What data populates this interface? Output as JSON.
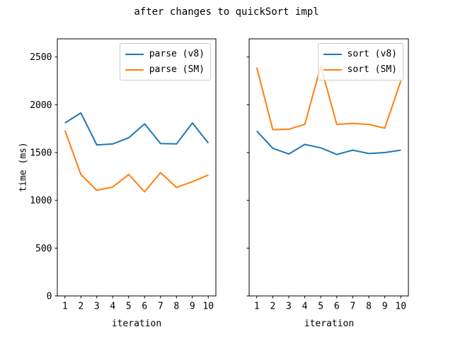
{
  "title": "after changes to quickSort impl",
  "colors": {
    "series_blue": "#1f77b4",
    "series_orange": "#ff7f0e",
    "axis": "#000000",
    "legend_border": "#cccccc",
    "background": "#ffffff"
  },
  "chart_data": [
    {
      "type": "line",
      "panel": "left",
      "x": [
        1,
        2,
        3,
        4,
        5,
        6,
        7,
        8,
        9,
        10
      ],
      "xlabel": "iteration",
      "ylabel": "time (ms)",
      "ylim": [
        0,
        2690
      ],
      "yticks": [
        0,
        500,
        1000,
        1500,
        2000,
        2500
      ],
      "show_ytick_labels": true,
      "grid": false,
      "legend_position": "upper right",
      "series": [
        {
          "name": "parse (v8)",
          "color": "#1f77b4",
          "values": [
            1810,
            1915,
            1580,
            1590,
            1655,
            1800,
            1595,
            1590,
            1810,
            1600
          ]
        },
        {
          "name": "parse (SM)",
          "color": "#ff7f0e",
          "values": [
            1730,
            1270,
            1105,
            1140,
            1270,
            1090,
            1290,
            1135,
            1195,
            1265
          ]
        }
      ]
    },
    {
      "type": "line",
      "panel": "right",
      "x": [
        1,
        2,
        3,
        4,
        5,
        6,
        7,
        8,
        9,
        10
      ],
      "xlabel": "iteration",
      "ylabel": "",
      "ylim": [
        0,
        2690
      ],
      "yticks": [
        0,
        500,
        1000,
        1500,
        2000,
        2500
      ],
      "show_ytick_labels": false,
      "grid": false,
      "legend_position": "upper right",
      "series": [
        {
          "name": "sort (v8)",
          "color": "#1f77b4",
          "values": [
            1725,
            1545,
            1485,
            1585,
            1550,
            1480,
            1525,
            1490,
            1500,
            1525
          ]
        },
        {
          "name": "sort (SM)",
          "color": "#ff7f0e",
          "values": [
            2390,
            1740,
            1745,
            1795,
            2405,
            1795,
            1805,
            1795,
            1755,
            2250
          ]
        }
      ]
    }
  ]
}
